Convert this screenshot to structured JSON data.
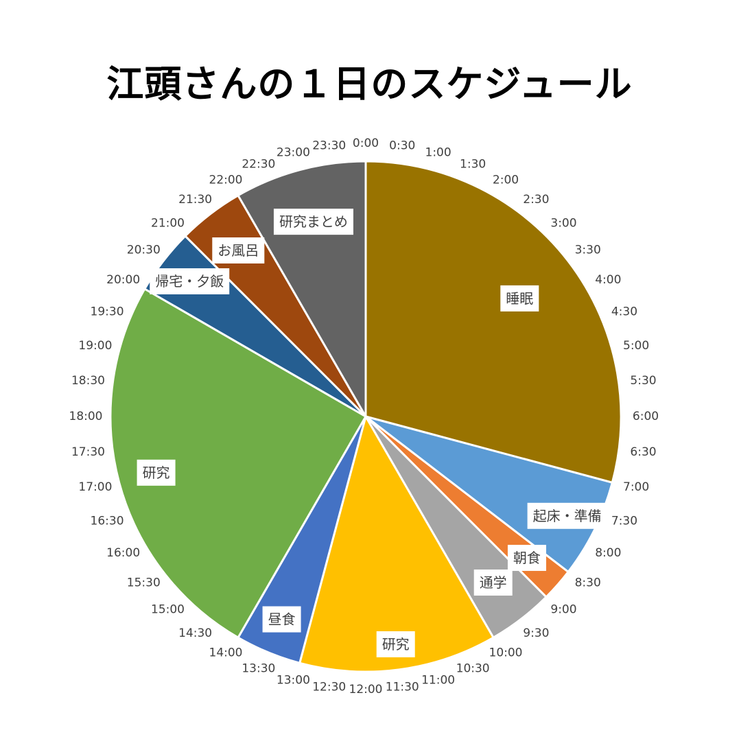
{
  "chart_data": {
    "type": "pie",
    "title": "江頭さんの１日のスケジュール",
    "slices": [
      {
        "label": "睡眠",
        "start": "0:00",
        "end": "7:00",
        "hours": 7.0,
        "color": "#997300"
      },
      {
        "label": "起床・準備",
        "start": "7:00",
        "end": "8:30",
        "hours": 1.5,
        "color": "#5B9BD5"
      },
      {
        "label": "朝食",
        "start": "8:30",
        "end": "9:00",
        "hours": 0.5,
        "color": "#ED7D31"
      },
      {
        "label": "通学",
        "start": "9:00",
        "end": "10:00",
        "hours": 1.0,
        "color": "#A5A5A5"
      },
      {
        "label": "研究",
        "start": "10:00",
        "end": "13:00",
        "hours": 3.0,
        "color": "#FFC000"
      },
      {
        "label": "昼食",
        "start": "13:00",
        "end": "14:00",
        "hours": 1.0,
        "color": "#4472C4"
      },
      {
        "label": "研究",
        "start": "14:00",
        "end": "20:00",
        "hours": 6.0,
        "color": "#70AD47"
      },
      {
        "label": "帰宅・夕飯",
        "start": "20:00",
        "end": "21:00",
        "hours": 1.0,
        "color": "#255E91"
      },
      {
        "label": "お風呂",
        "start": "21:00",
        "end": "22:00",
        "hours": 1.0,
        "color": "#9E480E"
      },
      {
        "label": "研究まとめ",
        "start": "22:00",
        "end": "24:00",
        "hours": 2.0,
        "color": "#636363"
      }
    ],
    "tick_labels": [
      "0:00",
      "0:30",
      "1:00",
      "1:30",
      "2:00",
      "2:30",
      "3:00",
      "3:30",
      "4:00",
      "4:30",
      "5:00",
      "5:30",
      "6:00",
      "6:30",
      "7:00",
      "7:30",
      "8:00",
      "8:30",
      "9:00",
      "9:30",
      "10:00",
      "10:30",
      "11:00",
      "11:30",
      "12:00",
      "12:30",
      "13:00",
      "13:30",
      "14:00",
      "14:30",
      "15:00",
      "15:30",
      "16:00",
      "16:30",
      "17:00",
      "17:30",
      "18:00",
      "18:30",
      "19:00",
      "19:30",
      "20:00",
      "20:30",
      "21:00",
      "21:30",
      "22:00",
      "22:30",
      "23:00",
      "23:30"
    ]
  }
}
